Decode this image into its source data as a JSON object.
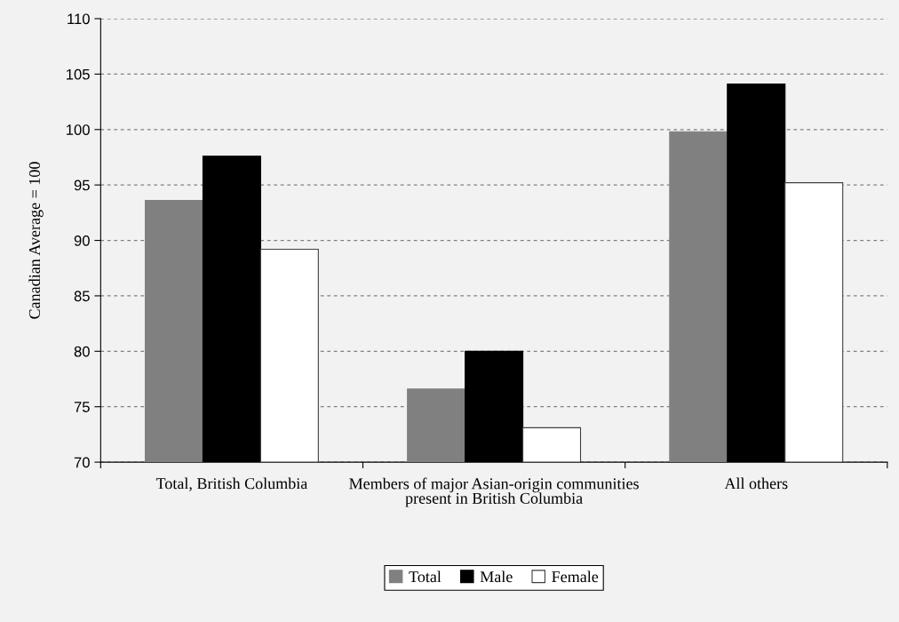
{
  "chart_data": {
    "type": "bar",
    "ylabel": "Canadian Average = 100",
    "categories": [
      "Total, British Columbia",
      "Members of major Asian-origin communities present in British Columbia",
      "All others"
    ],
    "series": [
      {
        "name": "Total",
        "color": "#808080",
        "values": [
          93.6,
          76.6,
          99.8
        ]
      },
      {
        "name": "Male",
        "color": "#000000",
        "values": [
          97.6,
          80.0,
          104.1
        ]
      },
      {
        "name": "Female",
        "color": "#ffffff",
        "values": [
          89.2,
          73.1,
          95.2
        ]
      }
    ],
    "ylim": [
      70,
      110
    ],
    "yticks": [
      70,
      75,
      80,
      85,
      90,
      95,
      100,
      105,
      110
    ],
    "grid": "y",
    "legend": "bottom"
  }
}
